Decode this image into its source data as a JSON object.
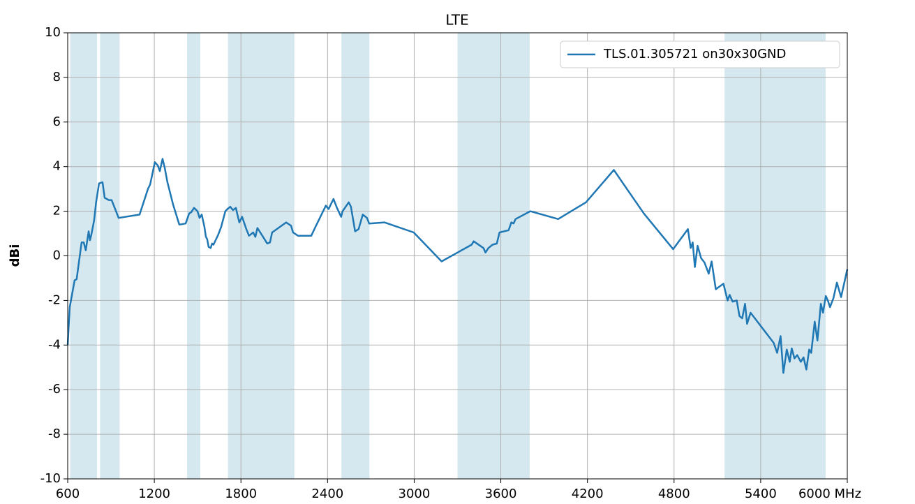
{
  "chart_data": {
    "type": "line",
    "title": "LTE",
    "ylabel": "dBi",
    "xlim": [
      600,
      6000
    ],
    "ylim": [
      -10,
      10
    ],
    "xticks": [
      600,
      1200,
      1800,
      2400,
      3000,
      3600,
      4200,
      4800,
      5400,
      {
        "value": 6000,
        "label": "6000 MHz"
      }
    ],
    "yticks": [
      -10,
      -8,
      -6,
      -4,
      -2,
      0,
      2,
      4,
      6,
      8,
      10
    ],
    "grid": true,
    "legend": "upper right",
    "band_color": "#d5e8f0",
    "bands": [
      [
        617,
        803
      ],
      [
        824,
        960
      ],
      [
        1427,
        1518
      ],
      [
        1710,
        2170
      ],
      [
        2496,
        2690
      ],
      [
        3300,
        3800
      ],
      [
        5150,
        5850
      ]
    ],
    "x": [
      600,
      614,
      648,
      662,
      696,
      711,
      725,
      745,
      754,
      764,
      783,
      797,
      817,
      841,
      856,
      885,
      904,
      953,
      1098,
      1156,
      1171,
      1204,
      1224,
      1238,
      1257,
      1272,
      1291,
      1330,
      1373,
      1417,
      1441,
      1455,
      1475,
      1499,
      1513,
      1528,
      1547,
      1557,
      1566,
      1576,
      1590,
      1600,
      1610,
      1643,
      1663,
      1692,
      1707,
      1726,
      1745,
      1765,
      1774,
      1789,
      1808,
      1837,
      1856,
      1885,
      1900,
      1914,
      1953,
      1982,
      2001,
      2016,
      2113,
      2147,
      2161,
      2195,
      2287,
      2316,
      2388,
      2407,
      2441,
      2465,
      2494,
      2504,
      2547,
      2562,
      2591,
      2615,
      2644,
      2673,
      2688,
      2794,
      2997,
      3190,
      3287,
      3398,
      3412,
      3480,
      3494,
      3514,
      3543,
      3572,
      3591,
      3654,
      3673,
      3688,
      3702,
      3804,
      3997,
      4190,
      4383,
      4591,
      4794,
      4896,
      4915,
      4929,
      4944,
      4963,
      4987,
      5011,
      5040,
      5060,
      5089,
      5142,
      5171,
      5185,
      5205,
      5234,
      5253,
      5272,
      5292,
      5306,
      5330,
      5490,
      5514,
      5538,
      5557,
      5581,
      5601,
      5615,
      5634,
      5653,
      5678,
      5697,
      5716,
      5736,
      5750,
      5774,
      5793,
      5817,
      5832,
      5851,
      5865,
      5880,
      5904,
      5928,
      5957,
      6000
    ],
    "series": [
      {
        "name": "TLS.01.305721 on30x30GND",
        "color": "#1f77b4",
        "values": [
          -4.0,
          -2.3,
          -1.1,
          -1.05,
          0.6,
          0.6,
          0.25,
          1.1,
          0.7,
          0.95,
          1.6,
          2.4,
          3.25,
          3.3,
          2.6,
          2.5,
          2.5,
          1.7,
          1.85,
          3.0,
          3.2,
          4.2,
          4.05,
          3.8,
          4.35,
          3.95,
          3.3,
          2.3,
          1.4,
          1.45,
          1.9,
          1.95,
          2.15,
          2.0,
          1.7,
          1.85,
          1.3,
          0.85,
          0.75,
          0.4,
          0.35,
          0.55,
          0.5,
          0.95,
          1.3,
          2.0,
          2.1,
          2.2,
          2.05,
          2.15,
          1.9,
          1.5,
          1.75,
          1.2,
          0.9,
          1.05,
          0.85,
          1.25,
          0.85,
          0.55,
          0.6,
          1.05,
          1.5,
          1.35,
          1.05,
          0.9,
          0.9,
          1.3,
          2.25,
          2.1,
          2.55,
          2.15,
          1.75,
          2.0,
          2.4,
          2.2,
          1.1,
          1.2,
          1.85,
          1.7,
          1.45,
          1.5,
          1.05,
          -0.25,
          0.1,
          0.5,
          0.65,
          0.35,
          0.15,
          0.35,
          0.5,
          0.55,
          1.05,
          1.15,
          1.5,
          1.45,
          1.65,
          2.0,
          1.65,
          2.4,
          3.85,
          1.9,
          0.3,
          1.2,
          0.35,
          0.6,
          -0.5,
          0.45,
          -0.1,
          -0.3,
          -0.8,
          -0.25,
          -1.5,
          -1.25,
          -2.0,
          -1.75,
          -2.05,
          -2.0,
          -2.7,
          -2.8,
          -2.15,
          -3.05,
          -2.55,
          -3.9,
          -4.35,
          -3.6,
          -5.25,
          -4.2,
          -4.75,
          -4.15,
          -4.6,
          -4.45,
          -4.75,
          -4.55,
          -5.1,
          -4.2,
          -4.35,
          -2.95,
          -3.8,
          -2.15,
          -2.55,
          -1.8,
          -2.0,
          -2.3,
          -1.9,
          -1.2,
          -1.85,
          -0.6
        ]
      }
    ]
  }
}
